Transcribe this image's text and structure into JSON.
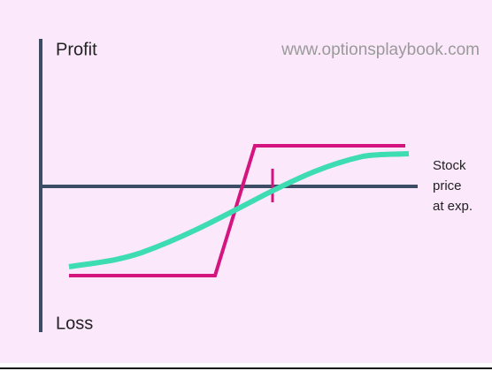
{
  "labels": {
    "profit": "Profit",
    "loss": "Loss",
    "watermark": "www.optionsplaybook.com",
    "x_axis": [
      "Stock",
      "price",
      "at exp."
    ]
  }
}
